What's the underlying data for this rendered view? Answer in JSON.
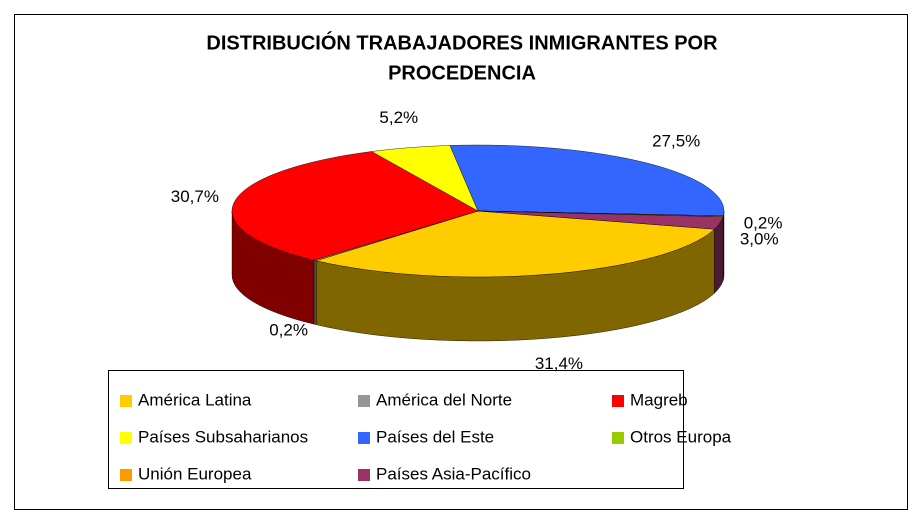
{
  "chart_data": {
    "type": "pie",
    "title": "DISTRIBUCIÓN TRABAJADORES INMIGRANTES POR PROCEDENCIA",
    "categories": [
      "América Latina",
      "América del Norte",
      "Magreb",
      "Países Subsaharianos",
      "Países del Este",
      "Otros Europa",
      "Unión Europea",
      "Países Asia-Pacífico"
    ],
    "values": [
      31.4,
      0.2,
      30.7,
      5.2,
      27.5,
      0,
      0.2,
      3.0
    ],
    "value_labels": [
      "31,4%",
      "0,2%",
      "30,7%",
      "5,2%",
      "27,5%",
      null,
      "0,2%",
      "3,0%"
    ],
    "colors": [
      "#ffcc00",
      "#969696",
      "#ff0000",
      "#ffff00",
      "#3366ff",
      "#99cc00",
      "#ff9900",
      "#993366"
    ],
    "legend": "bottom"
  }
}
